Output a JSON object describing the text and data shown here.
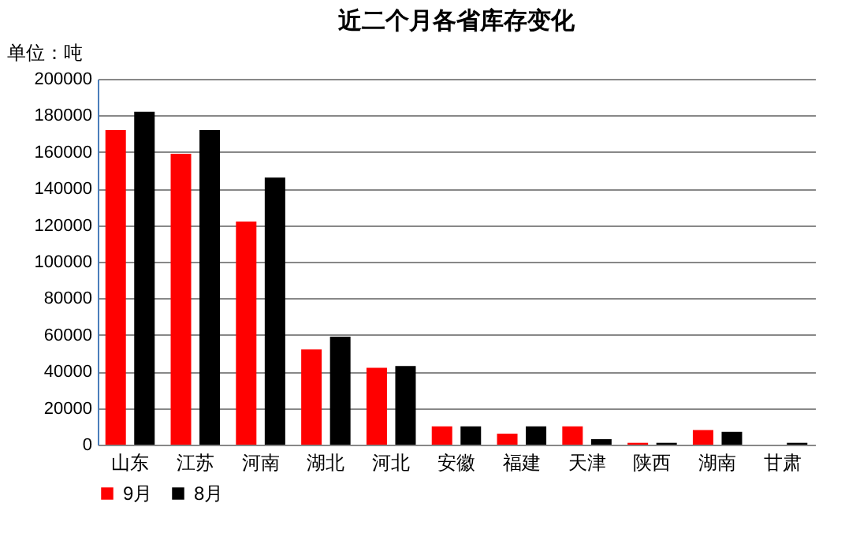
{
  "chart_data": {
    "type": "bar",
    "title": "近二个月各省库存变化",
    "ylabel": "单位：吨",
    "categories": [
      "山东",
      "江苏",
      "河南",
      "湖北",
      "河北",
      "安徽",
      "福建",
      "天津",
      "陕西",
      "湖南",
      "甘肃"
    ],
    "series": [
      {
        "name": "9月",
        "color": "#ff0000",
        "values": [
          172000,
          159000,
          122000,
          52000,
          42000,
          10000,
          6000,
          10000,
          1000,
          8000,
          0
        ]
      },
      {
        "name": "8月",
        "color": "#000000",
        "values": [
          182000,
          172000,
          146000,
          59000,
          43000,
          10000,
          10000,
          3000,
          1000,
          7000,
          1000
        ]
      }
    ],
    "ylim": [
      0,
      200000
    ],
    "yticks": [
      0,
      20000,
      40000,
      60000,
      80000,
      100000,
      120000,
      140000,
      160000,
      180000,
      200000
    ],
    "grid": "y",
    "legend": "bottom"
  }
}
